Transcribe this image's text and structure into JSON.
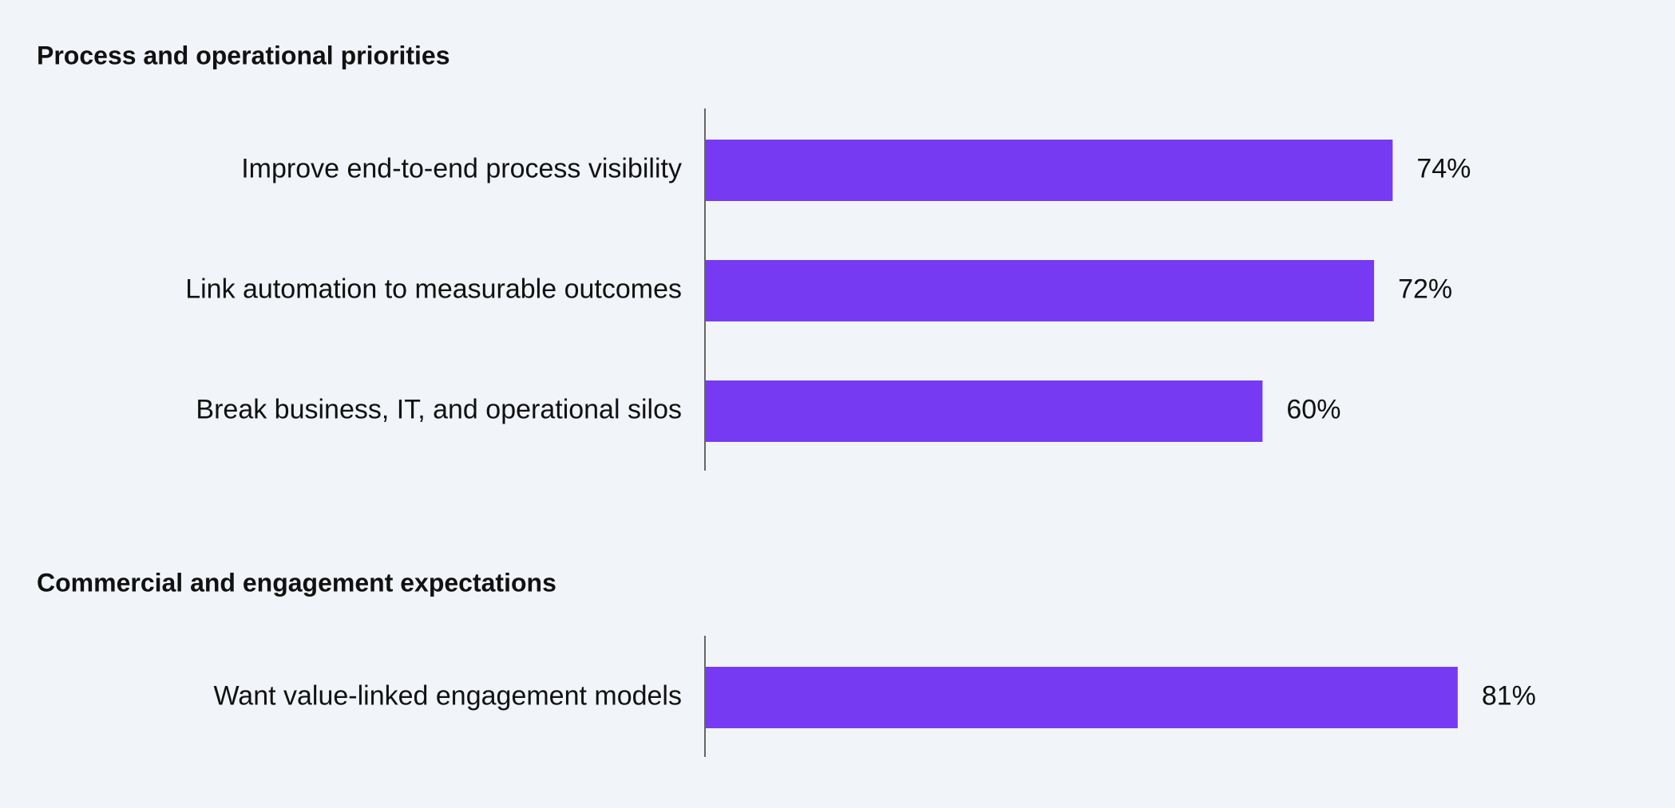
{
  "chart_data": [
    {
      "type": "bar",
      "orientation": "horizontal",
      "title": "Process and operational priorities",
      "categories": [
        "Improve end-to-end process visibility",
        "Link automation to measurable outcomes",
        "Break business, IT, and operational silos"
      ],
      "values": [
        74,
        72,
        60
      ],
      "value_labels": [
        "74%",
        "72%",
        "60%"
      ],
      "color": "#763af2"
    },
    {
      "type": "bar",
      "orientation": "horizontal",
      "title": "Commercial and engagement expectations",
      "categories": [
        "Want value-linked engagement models"
      ],
      "values": [
        81
      ],
      "value_labels": [
        "81%"
      ],
      "color": "#763af2"
    }
  ]
}
